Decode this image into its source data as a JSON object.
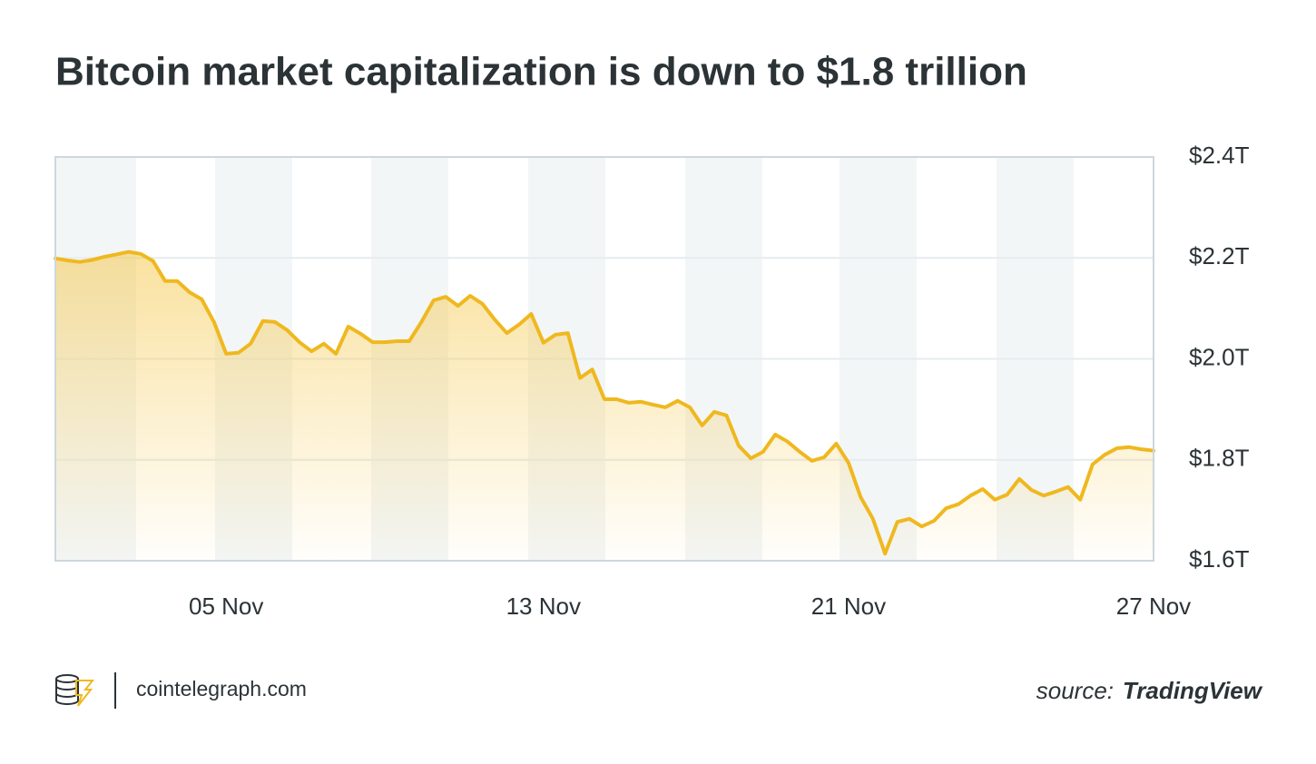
{
  "chart_data": {
    "type": "area",
    "title": "Bitcoin market capitalization is down to $1.8 trillion",
    "categories": [
      null,
      null,
      null,
      null,
      null,
      null,
      null,
      null,
      null,
      null,
      null,
      null,
      null,
      null,
      "05 Nov",
      null,
      null,
      null,
      null,
      null,
      null,
      null,
      null,
      null,
      null,
      null,
      null,
      null,
      null,
      null,
      null,
      null,
      null,
      null,
      null,
      null,
      null,
      null,
      null,
      null,
      "13 Nov",
      null,
      null,
      null,
      null,
      null,
      null,
      null,
      null,
      null,
      null,
      null,
      null,
      null,
      null,
      null,
      null,
      null,
      null,
      null,
      null,
      null,
      null,
      null,
      null,
      "21 Nov",
      null,
      null,
      null,
      null,
      null,
      null,
      null,
      null,
      null,
      null,
      null,
      null,
      null,
      null,
      null,
      null,
      null,
      null,
      null,
      null,
      null,
      null,
      null,
      null,
      "27 Nov"
    ],
    "values": [
      2.199,
      2.195,
      2.192,
      2.196,
      2.202,
      2.207,
      2.212,
      2.208,
      2.194,
      2.154,
      2.154,
      2.132,
      2.118,
      2.073,
      2.01,
      2.012,
      2.03,
      2.075,
      2.073,
      2.057,
      2.033,
      2.015,
      2.03,
      2.01,
      2.064,
      2.05,
      2.033,
      2.033,
      2.035,
      2.035,
      2.073,
      2.116,
      2.123,
      2.105,
      2.125,
      2.109,
      2.078,
      2.051,
      2.068,
      2.089,
      2.032,
      2.048,
      2.051,
      1.962,
      1.979,
      1.92,
      1.92,
      1.913,
      1.915,
      1.909,
      1.904,
      1.917,
      1.904,
      1.868,
      1.895,
      1.888,
      1.828,
      1.803,
      1.816,
      1.85,
      1.836,
      1.816,
      1.798,
      1.805,
      1.832,
      1.794,
      1.726,
      1.683,
      1.614,
      1.677,
      1.683,
      1.668,
      1.679,
      1.704,
      1.712,
      1.729,
      1.742,
      1.721,
      1.731,
      1.762,
      1.74,
      1.729,
      1.737,
      1.746,
      1.721,
      1.791,
      1.81,
      1.823,
      1.825,
      1.821,
      1.818
    ],
    "color": "#efb81f",
    "ylim": [
      1.6,
      2.4
    ],
    "yticks": [
      {
        "value": 1.6,
        "label": "$1.6T"
      },
      {
        "value": 1.8,
        "label": "$1.8T"
      },
      {
        "value": 2.0,
        "label": "$2.0T"
      },
      {
        "value": 2.2,
        "label": "$2.2T"
      },
      {
        "value": 2.4,
        "label": "$2.4T"
      }
    ],
    "grid": true
  },
  "footer": {
    "site": "cointelegraph.com",
    "source_label": "source:",
    "source": "TradingView"
  }
}
